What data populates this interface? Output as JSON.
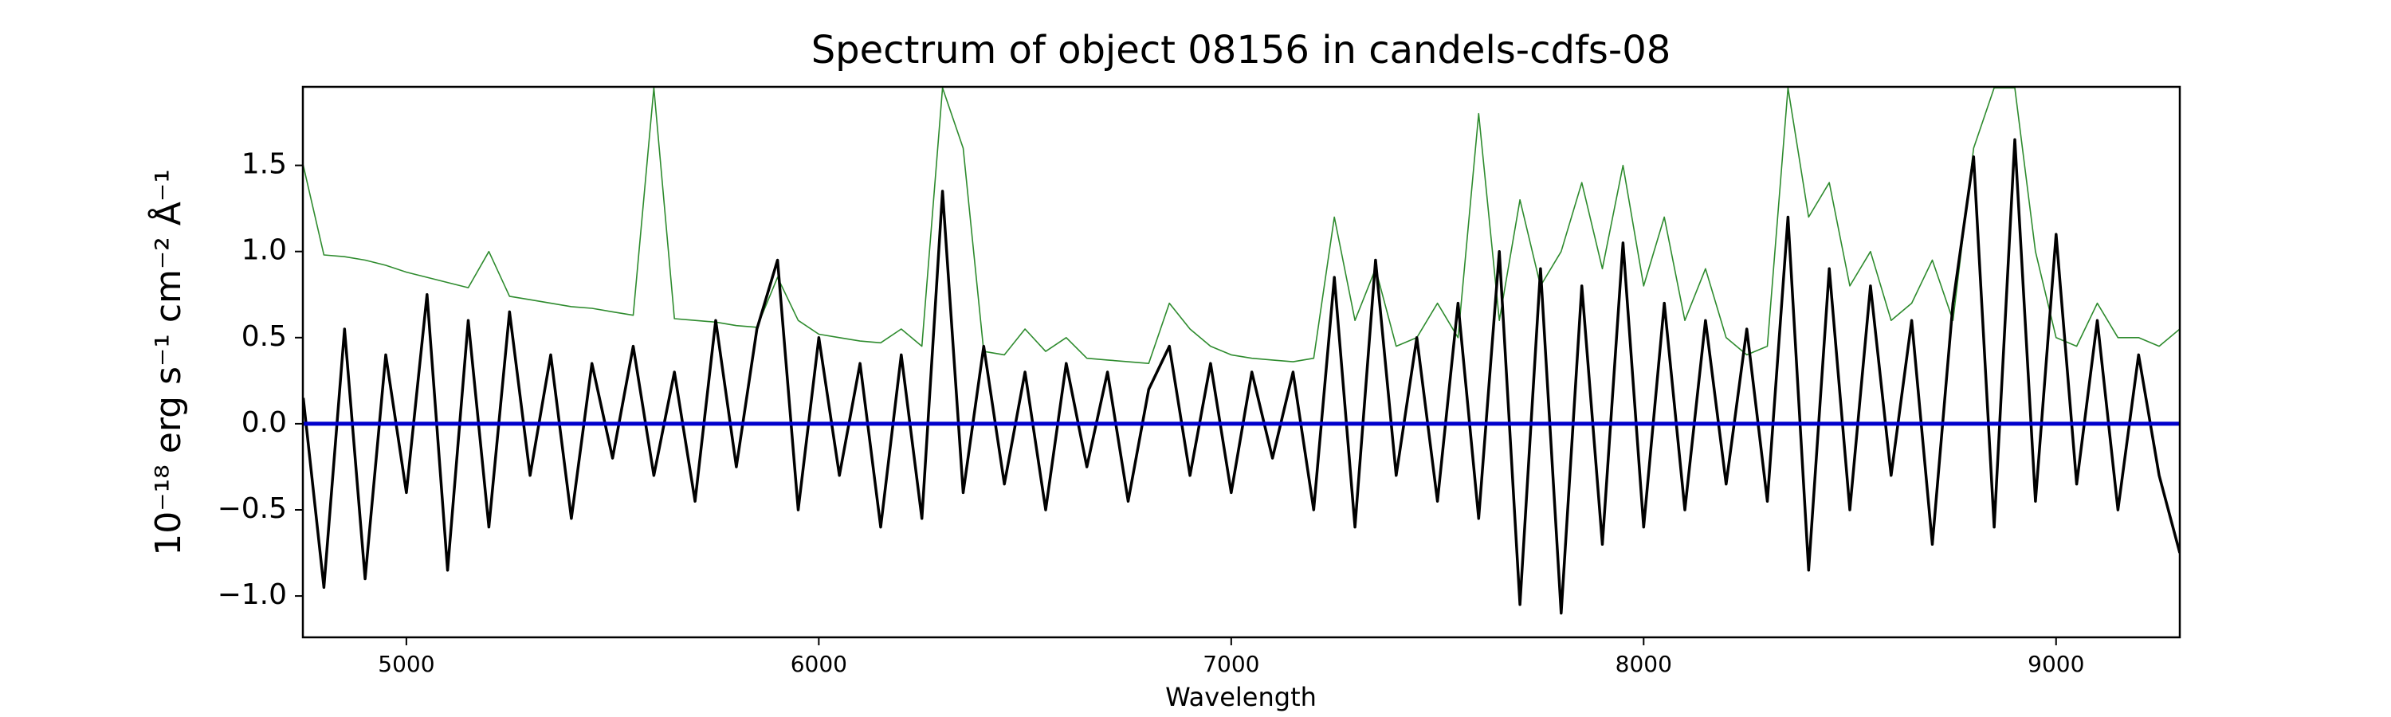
{
  "chart_data": {
    "type": "line",
    "title": "Spectrum of object 08156 in candels-cdfs-08",
    "xlabel": "Wavelength",
    "ylabel": "10⁻¹⁸ erg s⁻¹ cm⁻² Å⁻¹",
    "x": [
      4750,
      4800,
      4850,
      4900,
      4950,
      5000,
      5050,
      5100,
      5150,
      5200,
      5250,
      5300,
      5350,
      5400,
      5450,
      5500,
      5550,
      5600,
      5650,
      5700,
      5750,
      5800,
      5850,
      5900,
      5950,
      6000,
      6050,
      6100,
      6150,
      6200,
      6250,
      6300,
      6350,
      6400,
      6450,
      6500,
      6550,
      6600,
      6650,
      6700,
      6750,
      6800,
      6850,
      6900,
      6950,
      7000,
      7050,
      7100,
      7150,
      7200,
      7250,
      7300,
      7350,
      7400,
      7450,
      7500,
      7550,
      7600,
      7650,
      7700,
      7750,
      7800,
      7850,
      7900,
      7950,
      8000,
      8050,
      8100,
      8150,
      8200,
      8250,
      8300,
      8350,
      8400,
      8450,
      8500,
      8550,
      8600,
      8650,
      8700,
      8750,
      8800,
      8850,
      8900,
      8950,
      9000,
      9050,
      9100,
      9150,
      9200,
      9250,
      9300
    ],
    "series": [
      {
        "color": "#2e8b2e",
        "width": 1.6,
        "values": [
          1.5,
          0.98,
          0.97,
          0.95,
          0.92,
          0.88,
          0.85,
          0.82,
          0.79,
          1.0,
          0.74,
          0.72,
          0.7,
          0.68,
          0.67,
          0.65,
          0.63,
          1.95,
          0.61,
          0.6,
          0.59,
          0.57,
          0.56,
          0.85,
          0.6,
          0.52,
          0.5,
          0.48,
          0.47,
          0.55,
          0.45,
          1.95,
          1.6,
          0.42,
          0.4,
          0.55,
          0.42,
          0.5,
          0.38,
          0.37,
          0.36,
          0.35,
          0.7,
          0.55,
          0.45,
          0.4,
          0.38,
          0.37,
          0.36,
          0.38,
          1.2,
          0.6,
          0.9,
          0.45,
          0.5,
          0.7,
          0.5,
          1.8,
          0.6,
          1.3,
          0.8,
          1.0,
          1.4,
          0.9,
          1.5,
          0.8,
          1.2,
          0.6,
          0.9,
          0.5,
          0.4,
          0.45,
          1.95,
          1.2,
          1.4,
          0.8,
          1.0,
          0.6,
          0.7,
          0.95,
          0.6,
          1.6,
          1.95,
          1.95,
          1.0,
          0.5,
          0.45,
          0.7,
          0.5,
          0.5,
          0.45,
          0.55
        ]
      },
      {
        "color": "#000000",
        "width": 3.5,
        "values": [
          0.15,
          -0.95,
          0.55,
          -0.9,
          0.4,
          -0.4,
          0.75,
          -0.85,
          0.6,
          -0.6,
          0.65,
          -0.3,
          0.4,
          -0.55,
          0.35,
          -0.2,
          0.45,
          -0.3,
          0.3,
          -0.45,
          0.6,
          -0.25,
          0.55,
          0.95,
          -0.5,
          0.5,
          -0.3,
          0.35,
          -0.6,
          0.4,
          -0.55,
          1.35,
          -0.4,
          0.45,
          -0.35,
          0.3,
          -0.5,
          0.35,
          -0.25,
          0.3,
          -0.45,
          0.2,
          0.45,
          -0.3,
          0.35,
          -0.4,
          0.3,
          -0.2,
          0.3,
          -0.5,
          0.85,
          -0.6,
          0.95,
          -0.3,
          0.5,
          -0.45,
          0.7,
          -0.55,
          1.0,
          -1.05,
          0.9,
          -1.1,
          0.8,
          -0.7,
          1.05,
          -0.6,
          0.7,
          -0.5,
          0.6,
          -0.35,
          0.55,
          -0.45,
          1.2,
          -0.85,
          0.9,
          -0.5,
          0.8,
          -0.3,
          0.6,
          -0.7,
          0.7,
          1.55,
          -0.6,
          1.65,
          -0.45,
          1.1,
          -0.35,
          0.6,
          -0.5,
          0.4,
          -0.3,
          -0.75
        ]
      }
    ],
    "reference_line": {
      "value": 0,
      "color": "#0000cc"
    },
    "xlim": [
      4749,
      9300
    ],
    "ylim": [
      -1.24,
      1.956
    ],
    "xticks": [
      5000,
      6000,
      7000,
      8000,
      9000
    ],
    "yticks": [
      {
        "value": -1.0,
        "label": "−1.0"
      },
      {
        "value": -0.5,
        "label": "−0.5"
      },
      {
        "value": 0,
        "label": "0.0"
      },
      0.5,
      {
        "value": 1.0,
        "label": "1.0"
      },
      1.5
    ]
  }
}
